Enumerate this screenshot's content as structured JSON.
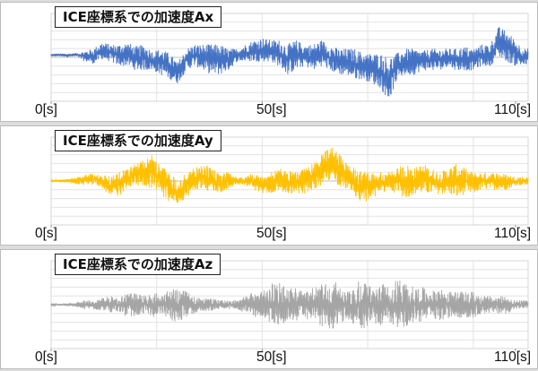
{
  "chart_data": [
    {
      "type": "line",
      "title": "ICE座標系での加速度Ax",
      "color": "#4472c4",
      "x_tick_labels": [
        "0[s]",
        "50[s]",
        "110[s]"
      ],
      "x_ticks": [
        0,
        50,
        110
      ],
      "x_range": [
        0,
        113
      ],
      "y_range": [
        -10,
        10
      ],
      "grid": true,
      "envelope": [
        [
          0,
          0.2,
          0.8
        ],
        [
          2,
          0.2,
          0.9
        ],
        [
          4,
          0.1,
          0.9
        ],
        [
          6,
          0.1,
          1
        ],
        [
          8,
          -1,
          1.5
        ],
        [
          10,
          -1.5,
          2
        ],
        [
          12,
          -0.5,
          3.5
        ],
        [
          14,
          -1,
          3
        ],
        [
          16,
          -2,
          3
        ],
        [
          18,
          -2,
          3.5
        ],
        [
          20,
          -3,
          2.5
        ],
        [
          22,
          -3,
          3
        ],
        [
          24,
          -3,
          1.5
        ],
        [
          26,
          -4,
          2
        ],
        [
          28,
          -5,
          1
        ],
        [
          30,
          -6,
          -1
        ],
        [
          32,
          -3,
          2
        ],
        [
          34,
          -2,
          3
        ],
        [
          36,
          -3,
          3
        ],
        [
          38,
          -4,
          3
        ],
        [
          40,
          -4,
          3
        ],
        [
          42,
          -3,
          2
        ],
        [
          44,
          -1,
          2
        ],
        [
          46,
          -1,
          3
        ],
        [
          48,
          -1,
          4
        ],
        [
          50,
          -1,
          4.5
        ],
        [
          52,
          -1,
          4
        ],
        [
          54,
          -2,
          4
        ],
        [
          56,
          -4,
          3
        ],
        [
          58,
          -3,
          4
        ],
        [
          60,
          -2,
          3
        ],
        [
          62,
          -3,
          3
        ],
        [
          64,
          -2,
          4
        ],
        [
          66,
          -3,
          3
        ],
        [
          68,
          -4,
          2
        ],
        [
          70,
          -4,
          2
        ],
        [
          72,
          -5,
          2
        ],
        [
          74,
          -5,
          1
        ],
        [
          76,
          -6,
          1
        ],
        [
          78,
          -7,
          1
        ],
        [
          80,
          -10,
          0
        ],
        [
          82,
          -5,
          1
        ],
        [
          84,
          -4,
          2
        ],
        [
          86,
          -4,
          2
        ],
        [
          88,
          -3,
          1.5
        ],
        [
          90,
          -3,
          2
        ],
        [
          92,
          -3,
          2
        ],
        [
          94,
          -2,
          2
        ],
        [
          96,
          -3,
          2
        ],
        [
          98,
          -3,
          2.5
        ],
        [
          100,
          -3,
          2
        ],
        [
          102,
          -2,
          3
        ],
        [
          104,
          -2,
          3
        ],
        [
          106,
          0,
          7
        ],
        [
          108,
          -1,
          6
        ],
        [
          110,
          -2,
          4
        ],
        [
          112,
          -2,
          2
        ]
      ]
    },
    {
      "type": "line",
      "title": "ICE座標系での加速度Ay",
      "color": "#ffc000",
      "x_tick_labels": [
        "0[s]",
        "50[s]",
        "110[s]"
      ],
      "x_ticks": [
        0,
        50,
        110
      ],
      "x_range": [
        0,
        113
      ],
      "y_range": [
        -10,
        10
      ],
      "grid": true,
      "envelope": [
        [
          0,
          -0.2,
          0.3
        ],
        [
          2,
          -0.3,
          0.3
        ],
        [
          4,
          -0.4,
          0.5
        ],
        [
          6,
          -0.8,
          0.8
        ],
        [
          8,
          -1,
          1.5
        ],
        [
          10,
          -1,
          2
        ],
        [
          12,
          -2,
          1.5
        ],
        [
          14,
          -3,
          1
        ],
        [
          16,
          -4,
          2
        ],
        [
          18,
          -2,
          3
        ],
        [
          20,
          -1,
          4
        ],
        [
          22,
          -1,
          5
        ],
        [
          24,
          -2,
          6
        ],
        [
          26,
          -3,
          4
        ],
        [
          28,
          -5,
          2
        ],
        [
          30,
          -5,
          0
        ],
        [
          32,
          -4,
          2
        ],
        [
          34,
          -2,
          3
        ],
        [
          36,
          -2,
          4
        ],
        [
          38,
          -3,
          3
        ],
        [
          40,
          -3,
          2
        ],
        [
          42,
          -2,
          2
        ],
        [
          44,
          -1,
          1
        ],
        [
          46,
          -1,
          1
        ],
        [
          48,
          -2,
          2
        ],
        [
          50,
          -3,
          1
        ],
        [
          52,
          -3,
          2
        ],
        [
          54,
          -2,
          3
        ],
        [
          56,
          -3,
          3
        ],
        [
          58,
          -3,
          2
        ],
        [
          60,
          -3,
          3
        ],
        [
          62,
          -2,
          4
        ],
        [
          64,
          -1,
          6
        ],
        [
          66,
          0,
          8
        ],
        [
          68,
          -1,
          7
        ],
        [
          70,
          -2,
          4
        ],
        [
          72,
          -4,
          3
        ],
        [
          74,
          -5,
          2
        ],
        [
          76,
          -4,
          2
        ],
        [
          78,
          -3,
          2
        ],
        [
          80,
          -2,
          2
        ],
        [
          82,
          -3,
          3
        ],
        [
          84,
          -4,
          4
        ],
        [
          86,
          -3,
          3
        ],
        [
          88,
          -3,
          4
        ],
        [
          90,
          -3,
          3
        ],
        [
          92,
          -3,
          2
        ],
        [
          94,
          -3,
          3
        ],
        [
          96,
          -4,
          4
        ],
        [
          98,
          -3,
          3
        ],
        [
          100,
          -3,
          2
        ],
        [
          102,
          -2,
          2
        ],
        [
          104,
          -2,
          2
        ],
        [
          106,
          -2,
          2
        ],
        [
          108,
          -2,
          1.5
        ],
        [
          110,
          -1,
          1
        ],
        [
          112,
          -1,
          1
        ]
      ]
    },
    {
      "type": "line",
      "title": "ICE座標系での加速度Az",
      "color": "#a5a5a5",
      "x_tick_labels": [
        "0[s]",
        "50[s]",
        "110[s]"
      ],
      "x_ticks": [
        0,
        50,
        110
      ],
      "x_range": [
        0,
        113
      ],
      "y_range": [
        -10,
        10
      ],
      "grid": true,
      "envelope": [
        [
          0,
          -0.2,
          0.2
        ],
        [
          2,
          -0.2,
          0.2
        ],
        [
          4,
          -0.3,
          0.3
        ],
        [
          6,
          -0.6,
          0.6
        ],
        [
          8,
          -1,
          1
        ],
        [
          10,
          -1,
          1
        ],
        [
          12,
          -1.5,
          1.5
        ],
        [
          14,
          -2,
          2
        ],
        [
          16,
          -1.5,
          1.5
        ],
        [
          18,
          -3,
          3
        ],
        [
          20,
          -2.5,
          2.5
        ],
        [
          22,
          -2,
          2
        ],
        [
          24,
          -3,
          3
        ],
        [
          26,
          -2,
          2
        ],
        [
          28,
          -3.5,
          3.5
        ],
        [
          30,
          -4,
          4
        ],
        [
          32,
          -3,
          3
        ],
        [
          34,
          -2,
          2
        ],
        [
          36,
          -1.5,
          1.5
        ],
        [
          38,
          -1.5,
          1.5
        ],
        [
          40,
          -1,
          1
        ],
        [
          42,
          -1,
          1
        ],
        [
          44,
          -1,
          1
        ],
        [
          46,
          -2,
          2
        ],
        [
          48,
          -3,
          3
        ],
        [
          50,
          -3,
          3
        ],
        [
          52,
          -5,
          5
        ],
        [
          54,
          -5,
          5
        ],
        [
          56,
          -4,
          4
        ],
        [
          58,
          -4,
          4
        ],
        [
          60,
          -3,
          3
        ],
        [
          62,
          -4,
          4
        ],
        [
          64,
          -5,
          5
        ],
        [
          66,
          -6,
          6
        ],
        [
          68,
          -5,
          5
        ],
        [
          70,
          -3,
          3
        ],
        [
          72,
          -5,
          5
        ],
        [
          74,
          -6,
          6
        ],
        [
          76,
          -4,
          4
        ],
        [
          78,
          -5,
          5
        ],
        [
          80,
          -4,
          4
        ],
        [
          82,
          -6,
          6
        ],
        [
          84,
          -5,
          5
        ],
        [
          86,
          -4,
          4
        ],
        [
          88,
          -4,
          4
        ],
        [
          90,
          -3,
          3
        ],
        [
          92,
          -4,
          4
        ],
        [
          94,
          -3,
          3
        ],
        [
          96,
          -3,
          3
        ],
        [
          98,
          -3,
          3
        ],
        [
          100,
          -3,
          3
        ],
        [
          102,
          -2,
          2
        ],
        [
          104,
          -2,
          2
        ],
        [
          106,
          -2,
          2
        ],
        [
          108,
          -2,
          2
        ],
        [
          110,
          -1,
          1
        ],
        [
          112,
          -1,
          1
        ]
      ]
    }
  ]
}
